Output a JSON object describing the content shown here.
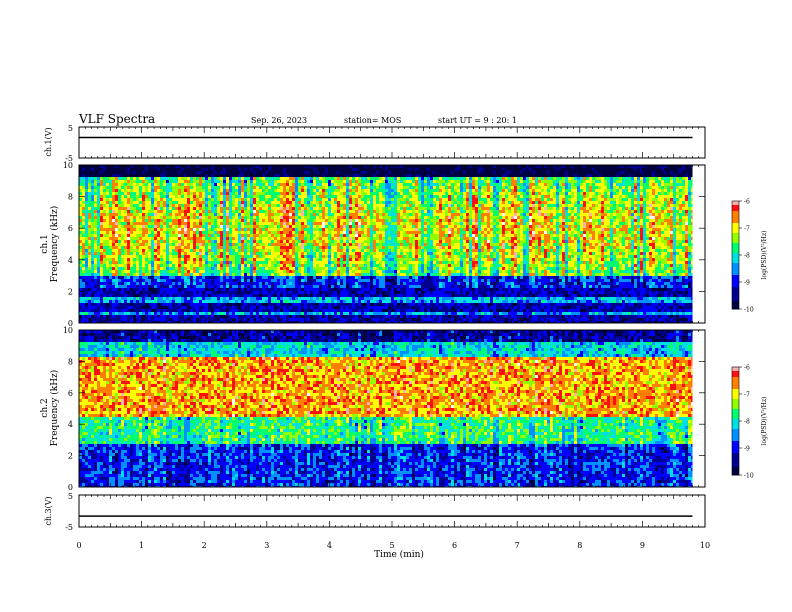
{
  "header": {
    "title": "VLF Spectra",
    "date": "Sep. 26, 2023",
    "station": "station= MOS",
    "start_time": "start UT =  9 : 20: 1"
  },
  "chart_data": [
    {
      "type": "line",
      "name": "ch1-voltage",
      "ylabel": "ch.1(V)",
      "ylim": [
        -5,
        5
      ],
      "yticks": [
        "5",
        "-5"
      ],
      "x": [
        0,
        9.8
      ],
      "values": [
        1.6,
        1.6
      ],
      "xlim": [
        0,
        10
      ]
    },
    {
      "type": "heatmap",
      "name": "ch1-spectrogram",
      "ylabel_lines": [
        "ch.1",
        "Frequency (kHz)"
      ],
      "ylim": [
        0,
        10
      ],
      "yticks": [
        "0",
        "2",
        "4",
        "6",
        "8",
        "10"
      ],
      "xlim": [
        0,
        9.8
      ],
      "colorbar": {
        "label": "log(PSD)(V²/Hz)",
        "range": [
          -10,
          -6
        ],
        "ticks": [
          "-6",
          "-7",
          "-8",
          "-9",
          "-10"
        ]
      }
    },
    {
      "type": "heatmap",
      "name": "ch2-spectrogram",
      "ylabel_lines": [
        "ch.2",
        "Frequency (kHz)"
      ],
      "ylim": [
        0,
        10
      ],
      "yticks": [
        "0",
        "2",
        "4",
        "6",
        "8",
        "10"
      ],
      "xlim": [
        0,
        9.8
      ],
      "colorbar": {
        "label": "log(PSD)(V²/Hz)",
        "range": [
          -10,
          -6
        ],
        "ticks": [
          "-6",
          "-7",
          "-8",
          "-9",
          "-10"
        ]
      }
    },
    {
      "type": "line",
      "name": "ch3-voltage",
      "ylabel": "ch.3(V)",
      "ylim": [
        -5,
        5
      ],
      "yticks": [
        "5",
        "-5"
      ],
      "x": [
        0,
        9.8
      ],
      "values": [
        -1.6,
        -1.6
      ],
      "xlim": [
        0,
        10
      ],
      "xlabel": "Time (min)",
      "xticks": [
        "0",
        "1",
        "2",
        "3",
        "4",
        "5",
        "6",
        "7",
        "8",
        "9",
        "10"
      ]
    }
  ],
  "colors": {
    "colormap": [
      "#000080",
      "#0000ff",
      "#00c0ff",
      "#00ff80",
      "#80ff00",
      "#ffff00",
      "#ff8000",
      "#ff0000",
      "#ffe0e0",
      "#ffffff"
    ]
  }
}
